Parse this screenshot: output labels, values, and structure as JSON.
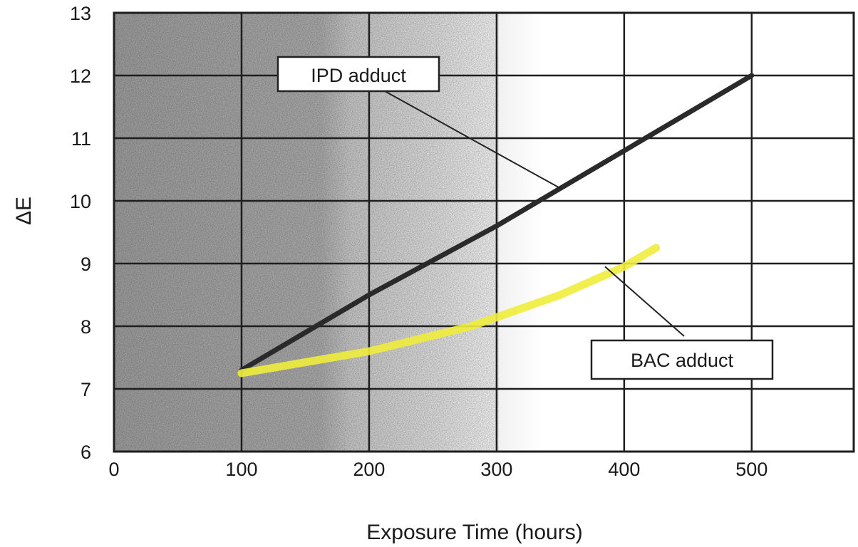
{
  "chart_data": {
    "type": "line",
    "title": "",
    "xlabel": "Exposure Time (hours)",
    "ylabel": "ΔE",
    "xlim": [
      0,
      580
    ],
    "ylim": [
      6,
      13
    ],
    "xticks": [
      0,
      100,
      200,
      300,
      400,
      500
    ],
    "yticks": [
      6,
      7,
      8,
      9,
      10,
      11,
      12,
      13
    ],
    "xtick_labels": [
      "0",
      "100",
      "200",
      "300",
      "400",
      "500"
    ],
    "ytick_labels": [
      "6",
      "7",
      "8",
      "9",
      "10",
      "11",
      "12",
      "13"
    ],
    "grid": true,
    "background_shading": "gradient from dark gray at x=0 to white near x=300",
    "series": [
      {
        "name": "IPD adduct",
        "color": "#2a2a2a",
        "x": [
          100,
          200,
          300,
          400,
          500
        ],
        "y": [
          7.3,
          8.5,
          9.6,
          10.8,
          12.0
        ]
      },
      {
        "name": "BAC adduct",
        "color": "#f0ec3c",
        "x": [
          100,
          200,
          280,
          350,
          400,
          425
        ],
        "y": [
          7.25,
          7.6,
          8.0,
          8.5,
          8.95,
          9.25
        ]
      }
    ],
    "annotations": [
      {
        "text": "IPD adduct",
        "points_to_series": "IPD adduct",
        "position": "upper-middle"
      },
      {
        "text": "BAC adduct",
        "points_to_series": "BAC adduct",
        "position": "lower-right"
      }
    ]
  }
}
